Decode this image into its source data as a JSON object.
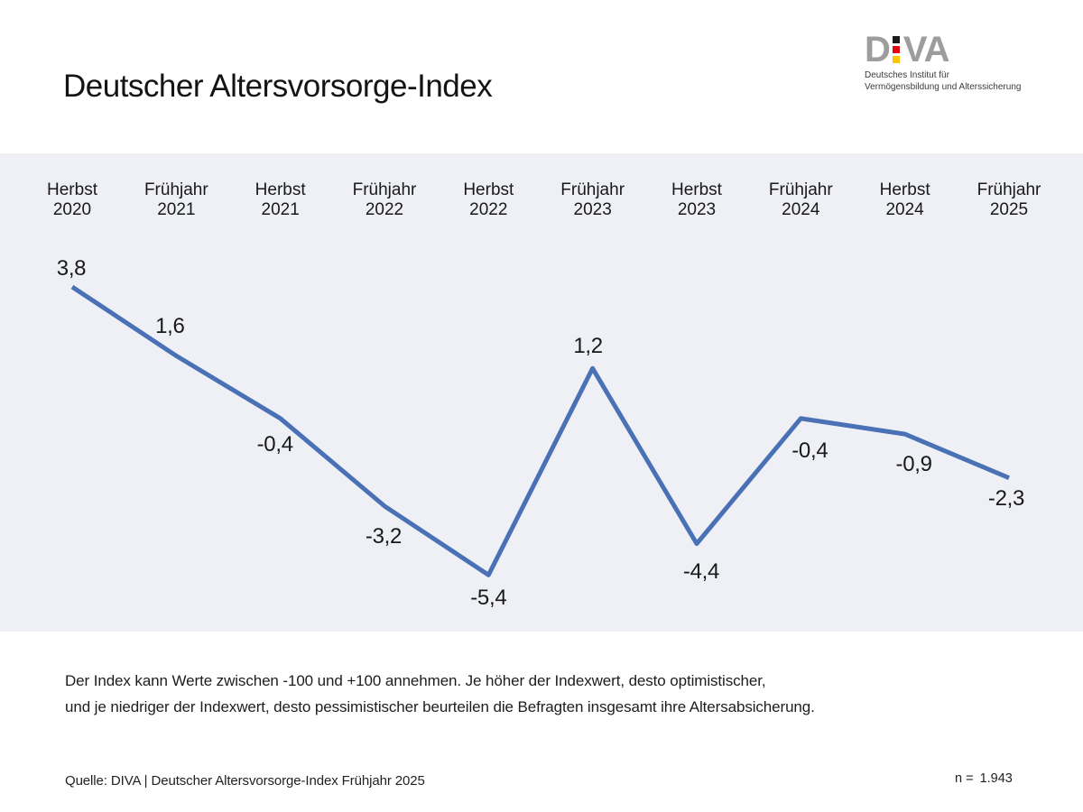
{
  "header": {
    "title": "Deutscher Altersvorsorge-Index",
    "logo": {
      "letter_d": "D",
      "letters_va": "VA",
      "flag_colors": [
        "#1d1d1b",
        "#e30613",
        "#fdc400"
      ],
      "letter_color": "#9d9d9c",
      "subtitle_line1": "Deutsches Institut für",
      "subtitle_line2": "Vermögensbildung und Alterssicherung"
    }
  },
  "chart_data": {
    "type": "line",
    "title": "Deutscher Altersvorsorge-Index",
    "categories": [
      "Herbst 2020",
      "Frühjahr 2021",
      "Herbst 2021",
      "Frühjahr 2022",
      "Herbst 2022",
      "Frühjahr 2023",
      "Herbst 2023",
      "Frühjahr 2024",
      "Herbst 2024",
      "Frühjahr 2025"
    ],
    "values": [
      3.8,
      1.6,
      -0.4,
      -3.2,
      -5.4,
      1.2,
      -4.4,
      -0.4,
      -0.9,
      -2.3
    ],
    "value_labels": [
      "3,8",
      "1,6",
      "-0,4",
      "-3,2",
      "-5,4",
      "1,2",
      "-4,4",
      "-0,4",
      "-0,9",
      "-2,3"
    ],
    "series_name": "Deutscher Altersvorsorge-Index",
    "line_color": "#4a71b5",
    "panel_background": "#eef0f5",
    "possible_value_range": [
      -100,
      100
    ],
    "axes": "none",
    "grid": "off",
    "legend": "none"
  },
  "footnote": {
    "line1": "Der Index kann Werte zwischen -100 und +100 annehmen. Je höher der Indexwert, desto optimistischer,",
    "line2": "und je niedriger der Indexwert, desto pessimistischer beurteilen die Befragten insgesamt ihre Altersabsicherung."
  },
  "footer": {
    "source": "Quelle: DIVA | Deutscher Altersvorsorge-Index Frühjahr 2025",
    "sample_label": "n =",
    "sample_value": "1.943"
  }
}
